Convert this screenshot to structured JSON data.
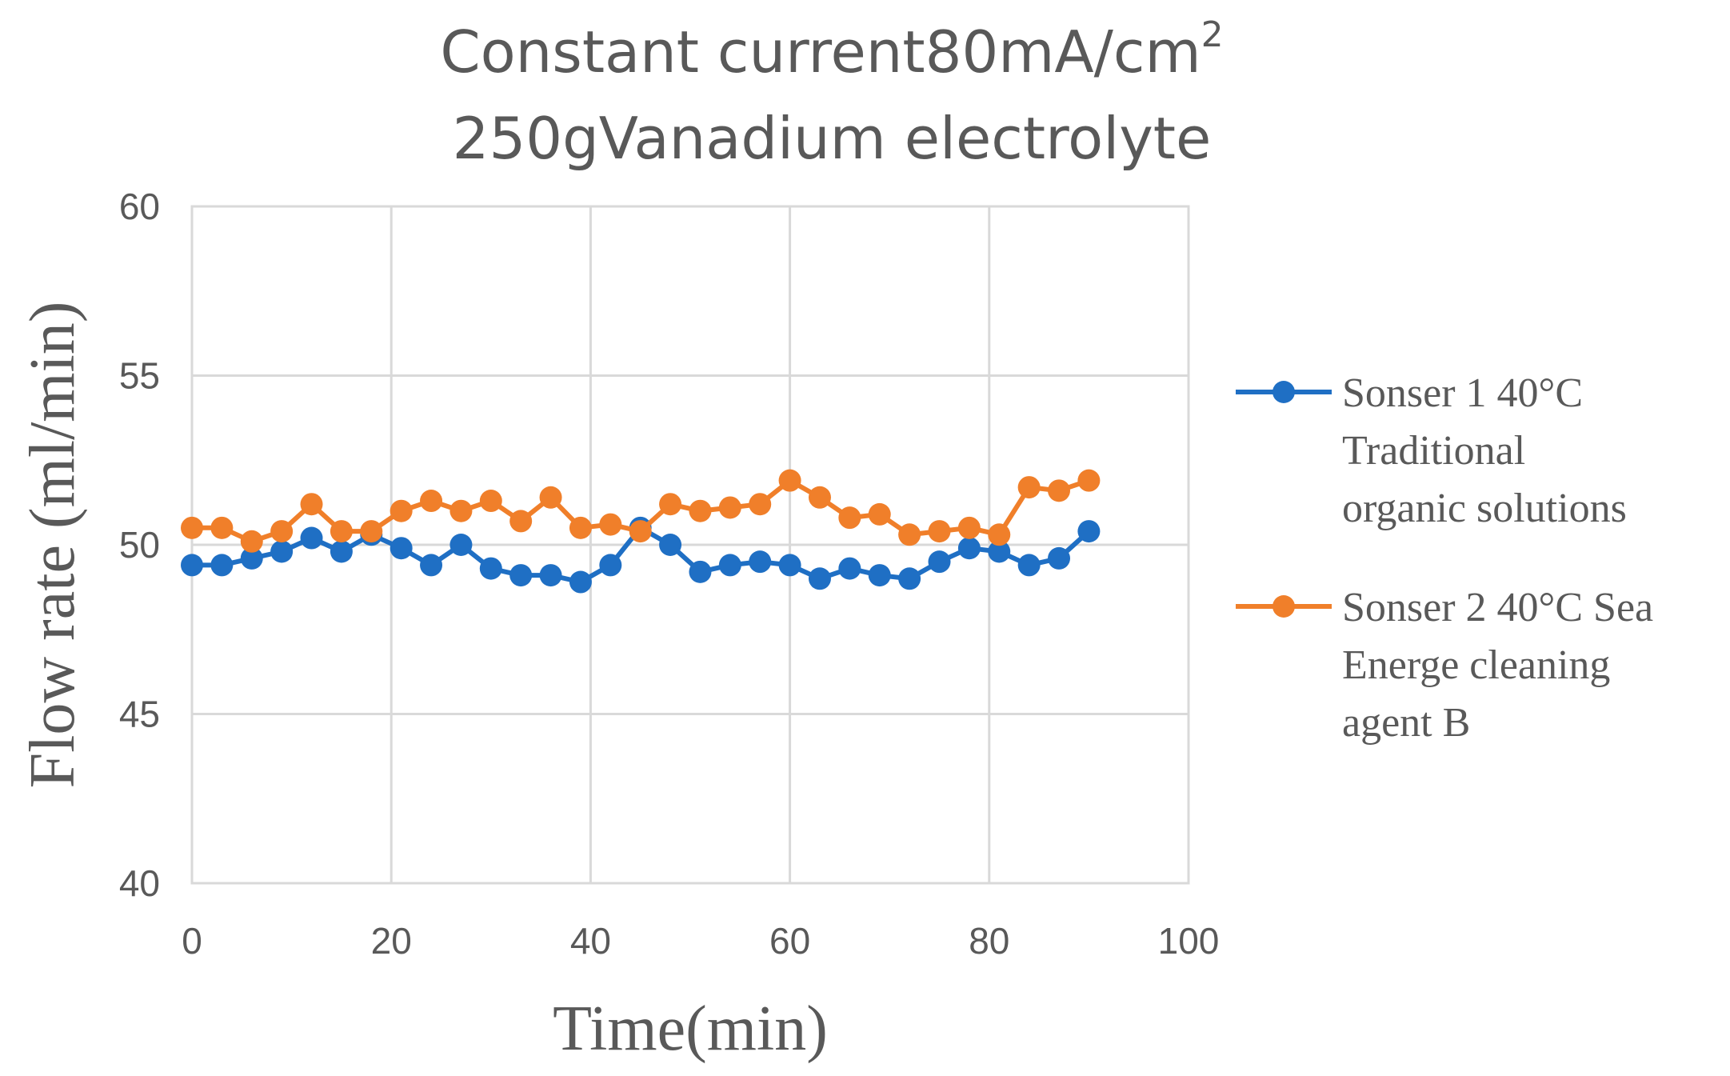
{
  "chart_data": {
    "type": "line",
    "title_line1": "Constant current80mA/cm",
    "title_superscript": "2",
    "title_line2": "250gVanadium electrolyte",
    "xlabel": "Time(min)",
    "ylabel": "Flow rate (ml/min)",
    "xlim": [
      0,
      100
    ],
    "ylim": [
      40,
      60
    ],
    "xticks": [
      0,
      20,
      40,
      60,
      80,
      100
    ],
    "yticks": [
      40,
      45,
      50,
      55,
      60
    ],
    "grid": true,
    "legend_position": "right",
    "x": [
      0,
      3,
      6,
      9,
      12,
      15,
      18,
      21,
      24,
      27,
      30,
      33,
      36,
      39,
      42,
      45,
      48,
      51,
      54,
      57,
      60,
      63,
      66,
      69,
      72,
      75,
      78,
      81,
      84,
      87,
      90
    ],
    "series": [
      {
        "name_lines": [
          "Sonser 1 40°C",
          "Traditional",
          "organic solutions"
        ],
        "color": "#1f6fc4",
        "values": [
          49.4,
          49.4,
          49.6,
          49.8,
          50.2,
          49.8,
          50.3,
          49.9,
          49.4,
          50.0,
          49.3,
          49.1,
          49.1,
          48.9,
          49.4,
          50.5,
          50.0,
          49.2,
          49.4,
          49.5,
          49.4,
          49.0,
          49.3,
          49.1,
          49.0,
          49.5,
          49.9,
          49.8,
          49.4,
          49.6,
          50.4
        ]
      },
      {
        "name_lines": [
          "Sonser 2 40°C Sea",
          "Energe cleaning",
          "agent B"
        ],
        "color": "#f07f2a",
        "values": [
          50.5,
          50.5,
          50.1,
          50.4,
          51.2,
          50.4,
          50.4,
          51.0,
          51.3,
          51.0,
          51.3,
          50.7,
          51.4,
          50.5,
          50.6,
          50.4,
          51.2,
          51.0,
          51.1,
          51.2,
          51.9,
          51.4,
          50.8,
          50.9,
          50.3,
          50.4,
          50.5,
          50.3,
          51.7,
          51.6,
          51.9
        ]
      }
    ]
  }
}
